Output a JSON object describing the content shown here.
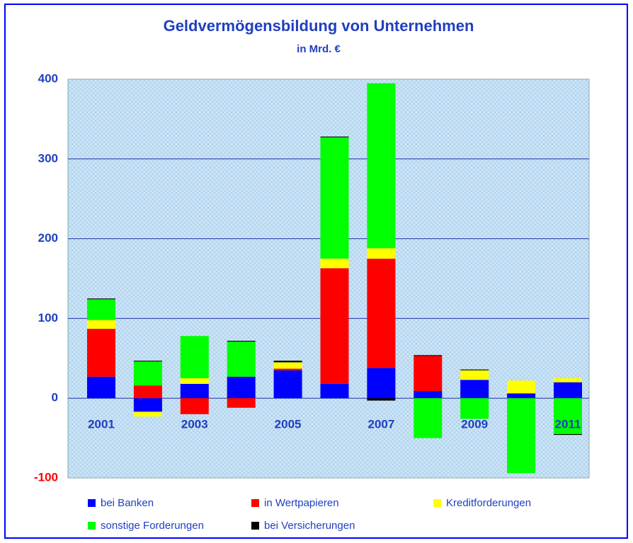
{
  "chart_data": {
    "type": "stacked_bar",
    "title": "Geldvermögensbildung von Unternehmen",
    "subtitle": "in Mrd. €",
    "categories": [
      "2001",
      null,
      "2003",
      null,
      "2005",
      null,
      "2007",
      null,
      "2009",
      null,
      "2011"
    ],
    "series": [
      {
        "name": "bei Banken",
        "color": "#0000ff",
        "values": [
          27,
          -17,
          18,
          27,
          35,
          18,
          38,
          9,
          23,
          6,
          20
        ]
      },
      {
        "name": "in Wertpapieren",
        "color": "#ff0000",
        "values": [
          60,
          16,
          -20,
          -12,
          2,
          145,
          137,
          44,
          0,
          0,
          0
        ]
      },
      {
        "name": "Kreditforderungen",
        "color": "#ffff00",
        "values": [
          11,
          -6,
          7,
          0,
          8,
          12,
          13,
          0,
          12,
          16,
          5
        ]
      },
      {
        "name": "sonstige Forderungen",
        "color": "#00ff00",
        "values": [
          26,
          30,
          53,
          44,
          0,
          152,
          207,
          -50,
          -26,
          -94,
          -45
        ]
      },
      {
        "name": "bei Versicherungen",
        "color": "#000000",
        "values": [
          1,
          1,
          0,
          1,
          2,
          1,
          -3,
          1,
          1,
          0,
          -1
        ]
      }
    ],
    "ylim": [
      -100,
      400
    ],
    "yticks": [
      -100,
      0,
      100,
      200,
      300,
      400
    ],
    "grid": true,
    "negative_tick_color": "#ff0000",
    "legend": "bottom"
  }
}
